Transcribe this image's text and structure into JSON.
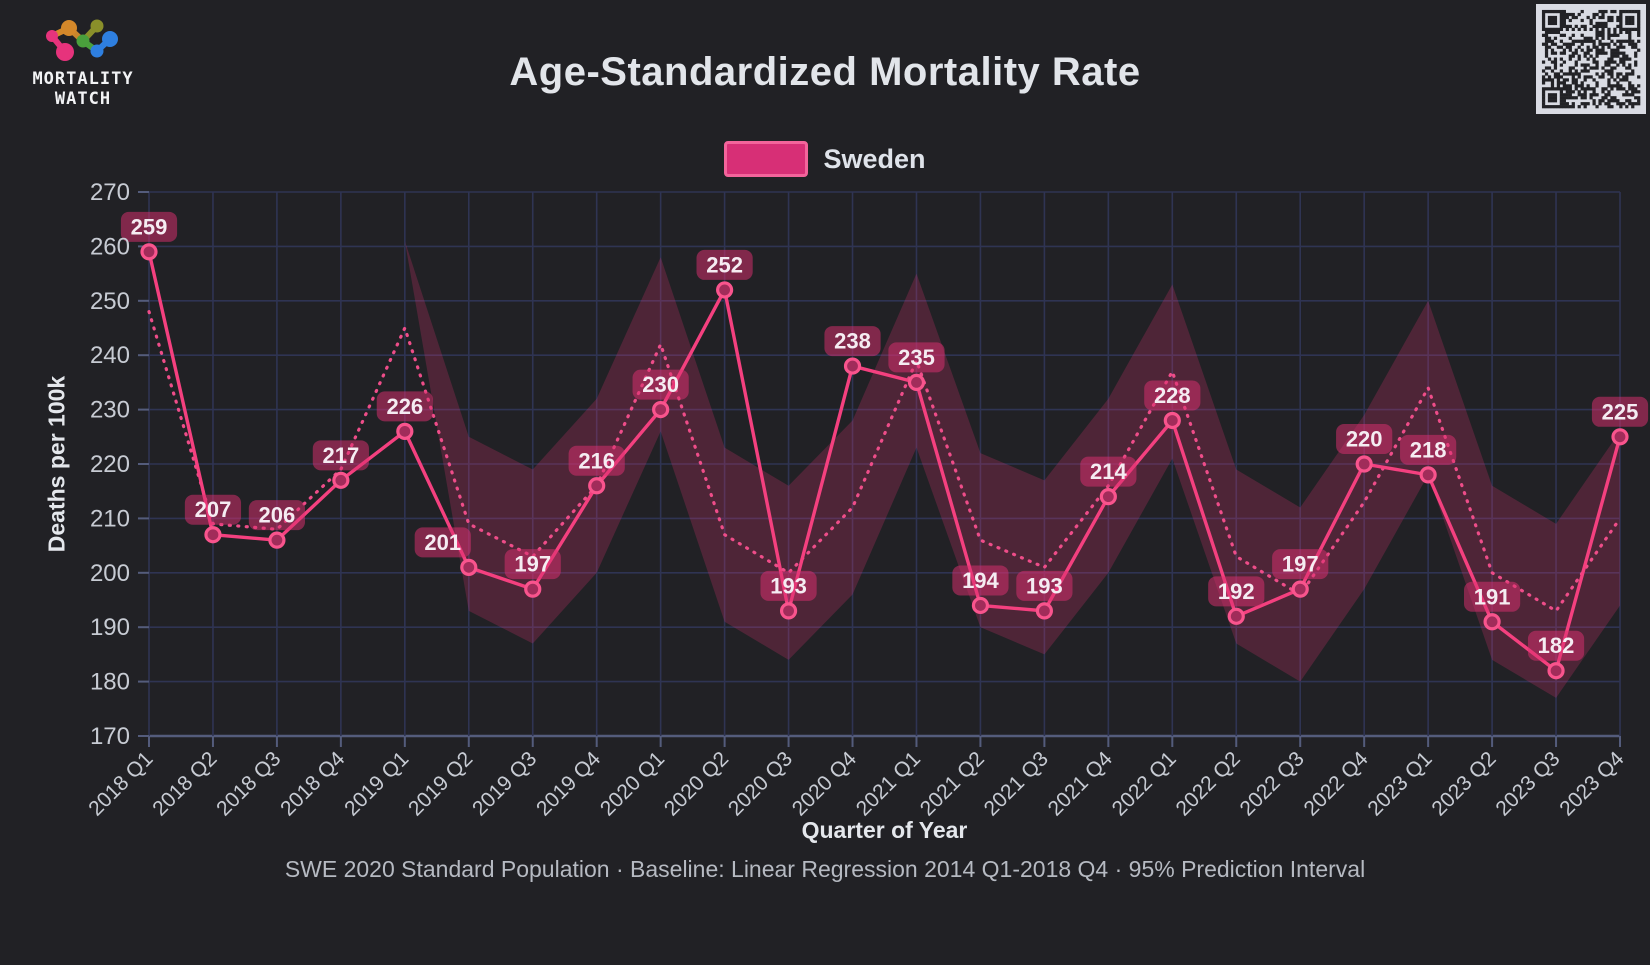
{
  "page": {
    "background": "#212125"
  },
  "logo": {
    "line1": "MORTALITY",
    "line2": "WATCH"
  },
  "header": {
    "title": "Age-Standardized Mortality Rate"
  },
  "legend": {
    "label": "Sweden",
    "swatch_fill": "#d72f76",
    "swatch_border": "#f3649b"
  },
  "footer": {
    "text": "SWE 2020 Standard Population · Baseline: Linear Regression 2014 Q1-2018 Q4 · 95% Prediction Interval"
  },
  "qr": {
    "name": "qr-code",
    "light": "#d9dbe3",
    "dark": "#222226"
  },
  "colors": {
    "background": "#212125",
    "grid": "#2f3453",
    "axis": "#545c7c",
    "tick_text": "#c7cbd3",
    "line": "#f4407f",
    "baseline": "#ee4d89",
    "band": "rgba(216,50,110,0.25)",
    "badge": "rgba(219,48,112,0.52)",
    "badge_text": "#f5ecf2",
    "marker_fill": "#a12c5a",
    "marker_stroke": "#f9548d"
  },
  "chart_data": {
    "type": "line",
    "title": "Age-Standardized Mortality Rate",
    "xlabel": "Quarter of Year",
    "ylabel": "Deaths per 100k",
    "ylim": [
      170,
      270
    ],
    "ytick_step": 10,
    "grid": true,
    "legend_position": "top",
    "categories": [
      "2018 Q1",
      "2018 Q2",
      "2018 Q3",
      "2018 Q4",
      "2019 Q1",
      "2019 Q2",
      "2019 Q3",
      "2019 Q4",
      "2020 Q1",
      "2020 Q2",
      "2020 Q3",
      "2020 Q4",
      "2021 Q1",
      "2021 Q2",
      "2021 Q3",
      "2021 Q4",
      "2022 Q1",
      "2022 Q2",
      "2022 Q3",
      "2022 Q4",
      "2023 Q1",
      "2023 Q2",
      "2023 Q3",
      "2023 Q4"
    ],
    "series": [
      {
        "name": "Sweden",
        "style": "solid-markers-labels",
        "values": [
          259,
          207,
          206,
          217,
          226,
          201,
          197,
          216,
          230,
          252,
          193,
          238,
          235,
          194,
          193,
          214,
          228,
          192,
          197,
          220,
          218,
          191,
          182,
          225
        ]
      },
      {
        "name": "Baseline (Linear Regression 2014 Q1-2018 Q4)",
        "style": "dotted",
        "values": [
          248,
          209,
          208,
          219,
          245,
          209,
          203,
          216,
          242,
          207,
          200,
          212,
          239,
          206,
          201,
          216,
          237,
          203,
          196,
          213,
          234,
          200,
          193,
          210
        ]
      }
    ],
    "band": {
      "name": "95% Prediction Interval",
      "start_index": 4,
      "half_width": 16
    }
  }
}
